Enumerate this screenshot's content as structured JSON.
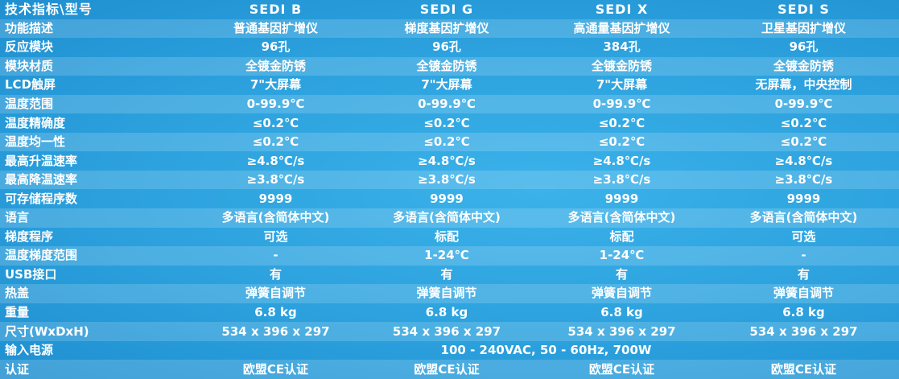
{
  "header": [
    "技术指标\\型号",
    "SEDI B",
    "SEDI G",
    "SEDI  X",
    "SEDI S"
  ],
  "rows": [
    [
      "功能描述",
      "普通基因扩增仪",
      "梯度基因扩增仪",
      "高通量基因扩增仪",
      "卫星基因扩增仪"
    ],
    [
      "反应模块",
      "96孔",
      "96孔",
      "384孔",
      "96孔"
    ],
    [
      "模块材质",
      "全镀金防锈",
      "全镀金防锈",
      "全镀金防锈",
      "全镀金防锈"
    ],
    [
      "LCD触屏",
      "7\"大屏幕",
      "7\"大屏幕",
      "7\"大屏幕",
      "无屏幕，中央控制"
    ],
    [
      "温度范围",
      "0-99.9℃",
      "0-99.9℃",
      "0-99.9℃",
      "0-99.9℃"
    ],
    [
      "温度精确度",
      "≤0.2℃",
      "≤0.2℃",
      "≤0.2℃",
      "≤0.2℃"
    ],
    [
      "温度均一性",
      "≤0.2℃",
      "≤0.2℃",
      "≤0.2℃",
      "≤0.2℃"
    ],
    [
      "最高升温速率",
      "≥4.8℃/s",
      "≥4.8℃/s",
      "≥4.8℃/s",
      "≥4.8℃/s"
    ],
    [
      "最高降温速率",
      "≥3.8℃/s",
      "≥3.8℃/s",
      "≥3.8℃/s",
      "≥3.8℃/s"
    ],
    [
      "可存储程序数",
      "9999",
      "9999",
      "9999",
      "9999"
    ],
    [
      "语言",
      "多语言(含简体中文)",
      "多语言(含简体中文)",
      "多语言(含简体中文)",
      "多语言(含简体中文)"
    ],
    [
      "梯度程序",
      "可选",
      "标配",
      "标配",
      "可选"
    ],
    [
      "温度梯度范围",
      "-",
      "1-24℃",
      "1-24℃",
      "-"
    ],
    [
      "USB接口",
      "有",
      "有",
      "有",
      "有"
    ],
    [
      "热盖",
      "弹簧自调节",
      "弹簧自调节",
      "弹簧自调节",
      "弹簧自调节"
    ],
    [
      "重量",
      "6.8 kg",
      "6.8 kg",
      "6.8 kg",
      "6.8 kg"
    ],
    [
      "尺寸(WxDxH)",
      "534 x 396 x 297",
      "534 x 396 x 297",
      "534 x 396 x 297",
      "534 x 396 x 297"
    ],
    [
      "输入电源",
      "100 - 240VAC, 50 - 60Hz, 700W"
    ],
    [
      "认证",
      "欧盟CE认证",
      "欧盟CE认证",
      "欧盟CE认证",
      "欧盟CE认证"
    ]
  ]
}
